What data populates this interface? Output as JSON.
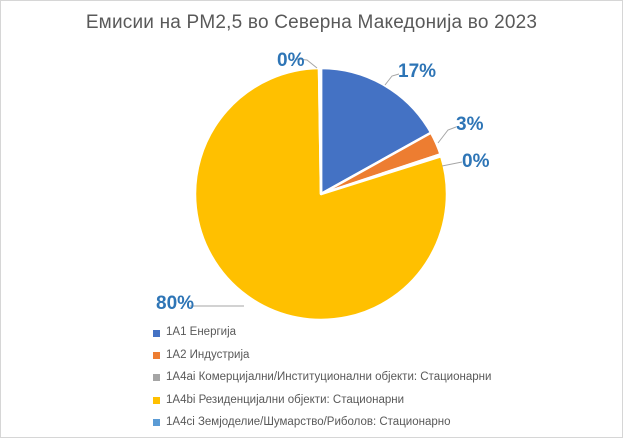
{
  "chart_data": {
    "type": "pie",
    "title": "Емисии на PM2,5 во Северна Македонија во 2023",
    "legend_position": "bottom-left",
    "grid": false,
    "title_color": "#595959",
    "pct_label_color": "#2E75B6",
    "legend_text_color": "#595959",
    "leader_line_color": "#A6A6A6",
    "slices": [
      {
        "label": "1A1 Енергија",
        "value": 17,
        "pct_label": "17%",
        "color": "#4472C4"
      },
      {
        "label": "1A2 Индустрија",
        "value": 3,
        "pct_label": "3%",
        "color": "#ED7D31"
      },
      {
        "label": "1A4ai Комерцијални/Институционални објекти: Стационарни",
        "value": 0,
        "pct_label": "0%",
        "color": "#A5A5A5"
      },
      {
        "label": "1A4bi Резиденцијални објекти: Стационарни",
        "value": 80,
        "pct_label": "80%",
        "color": "#FFC000"
      },
      {
        "label": "1A4ci Земјоделие/Шумарство/Риболов: Стационарно",
        "value": 0,
        "pct_label": "0%",
        "color": "#5B9BD5"
      }
    ]
  }
}
